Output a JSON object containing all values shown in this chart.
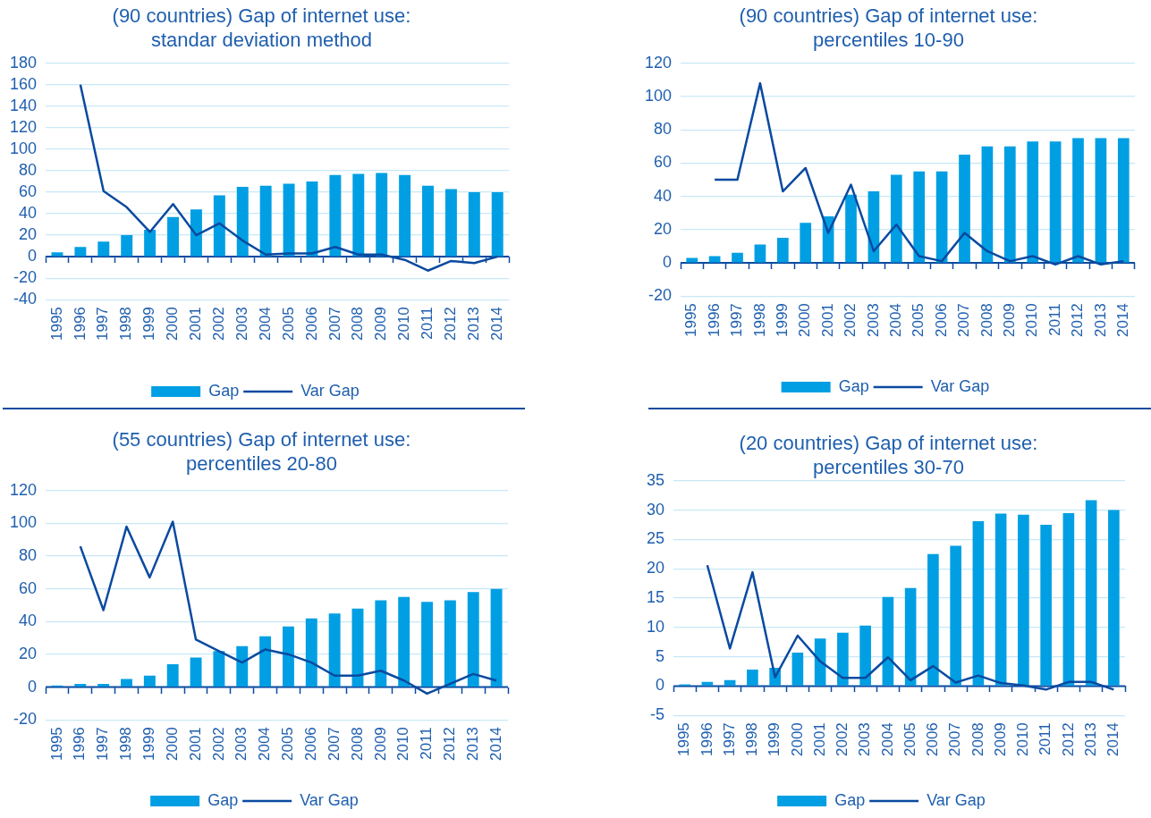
{
  "chart_data": [
    {
      "type": "bar",
      "title": "(90 countries) Gap of internet use: standar deviation method",
      "categories": [
        "1995",
        "1996",
        "1997",
        "1998",
        "1999",
        "2000",
        "2001",
        "2002",
        "2003",
        "2004",
        "2005",
        "2006",
        "2007",
        "2008",
        "2009",
        "2010",
        "2011",
        "2012",
        "2013",
        "2014"
      ],
      "series": [
        {
          "name": "Gap",
          "color": "#009fe3",
          "values": [
            4,
            9,
            14,
            20,
            25,
            37,
            44,
            57,
            65,
            66,
            68,
            70,
            76,
            77,
            78,
            76,
            66,
            63,
            60,
            60
          ]
        },
        {
          "name": "Var Gap",
          "type": "line",
          "color": "#0a4aa0",
          "values": [
            null,
            160,
            61,
            46,
            23,
            49,
            20,
            31,
            15,
            2,
            3,
            3,
            9,
            2,
            2,
            -3,
            -13,
            -4,
            -6,
            0
          ]
        }
      ],
      "ylim": [
        -40,
        180
      ],
      "yticks": [
        -40,
        -20,
        0,
        20,
        40,
        60,
        80,
        100,
        120,
        140,
        160,
        180
      ],
      "grid": "y",
      "legend": "bottom",
      "ref_lines": [
        {
          "axis": "y",
          "value": 0,
          "color": "#0a4aa0"
        }
      ]
    },
    {
      "type": "bar",
      "title": "(90 countries) Gap of internet use: percentiles 10-90",
      "categories": [
        "1995",
        "1996",
        "1997",
        "1998",
        "1999",
        "2000",
        "2001",
        "2002",
        "2003",
        "2004",
        "2005",
        "2006",
        "2007",
        "2008",
        "2009",
        "2010",
        "2011",
        "2012",
        "2013",
        "2014"
      ],
      "series": [
        {
          "name": "Gap",
          "color": "#009fe3",
          "values": [
            3,
            4,
            6,
            11,
            15,
            24,
            28,
            41,
            43,
            53,
            55,
            55,
            65,
            70,
            70,
            73,
            73,
            75,
            75,
            75
          ]
        },
        {
          "name": "Var Gap",
          "type": "line",
          "color": "#0a4aa0",
          "values": [
            null,
            50,
            50,
            108,
            43,
            57,
            18,
            47,
            7,
            23,
            4,
            1,
            18,
            7,
            1,
            4,
            -1,
            4,
            -1,
            1
          ]
        }
      ],
      "ylim": [
        -20,
        120
      ],
      "yticks": [
        -20,
        0,
        20,
        40,
        60,
        80,
        100,
        120
      ],
      "grid": "y",
      "legend": "bottom",
      "ref_lines": [
        {
          "axis": "y",
          "value": 0,
          "color": "#0a4aa0"
        }
      ]
    },
    {
      "type": "bar",
      "title": "(55 countries) Gap of internet use: percentiles 20-80",
      "categories": [
        "1995",
        "1996",
        "1997",
        "1998",
        "1999",
        "2000",
        "2001",
        "2002",
        "2003",
        "2004",
        "2005",
        "2006",
        "2007",
        "2008",
        "2009",
        "2010",
        "2011",
        "2012",
        "2013",
        "2014"
      ],
      "series": [
        {
          "name": "Gap",
          "color": "#009fe3",
          "values": [
            1,
            2,
            2,
            5,
            7,
            14,
            18,
            22,
            25,
            31,
            37,
            42,
            45,
            48,
            53,
            55,
            52,
            53,
            58,
            60
          ]
        },
        {
          "name": "Var Gap",
          "type": "line",
          "color": "#0a4aa0",
          "values": [
            null,
            86,
            47,
            98,
            67,
            101,
            29,
            22,
            15,
            23,
            20,
            15,
            7,
            7,
            10,
            4,
            -4,
            2,
            8,
            4
          ]
        }
      ],
      "ylim": [
        -20,
        120
      ],
      "yticks": [
        -20,
        0,
        20,
        40,
        60,
        80,
        100,
        120
      ],
      "grid": "y",
      "legend": "bottom",
      "ref_lines": [
        {
          "axis": "y",
          "value": 0,
          "color": "#0a4aa0"
        }
      ]
    },
    {
      "type": "bar",
      "title": "(20 countries) Gap of internet use: percentiles 30-70",
      "categories": [
        "1995",
        "1996",
        "1997",
        "1998",
        "1999",
        "2000",
        "2001",
        "2002",
        "2003",
        "2004",
        "2005",
        "2006",
        "2007",
        "2008",
        "2009",
        "2010",
        "2011",
        "2012",
        "2013",
        "2014"
      ],
      "series": [
        {
          "name": "Gap",
          "color": "#009fe3",
          "values": [
            0.3,
            0.7,
            1.0,
            2.8,
            3.1,
            5.7,
            8.1,
            9.1,
            10.3,
            15.2,
            16.7,
            22.5,
            23.9,
            28.1,
            29.4,
            29.2,
            27.5,
            29.5,
            31.7,
            30.0
          ]
        },
        {
          "name": "Var Gap",
          "type": "line",
          "color": "#0a4aa0",
          "values": [
            null,
            20.6,
            6.4,
            19.4,
            1.5,
            8.6,
            4.2,
            1.4,
            1.4,
            4.9,
            1.0,
            3.4,
            0.6,
            1.8,
            0.5,
            0.1,
            -0.6,
            0.7,
            0.7,
            -0.6
          ]
        }
      ],
      "ylim": [
        -5,
        35
      ],
      "yticks": [
        -5,
        0,
        5,
        10,
        15,
        20,
        25,
        30,
        35
      ],
      "grid": "y",
      "legend": "bottom",
      "ref_lines": [
        {
          "axis": "y",
          "value": 0,
          "color": "#0a4aa0"
        }
      ]
    }
  ]
}
